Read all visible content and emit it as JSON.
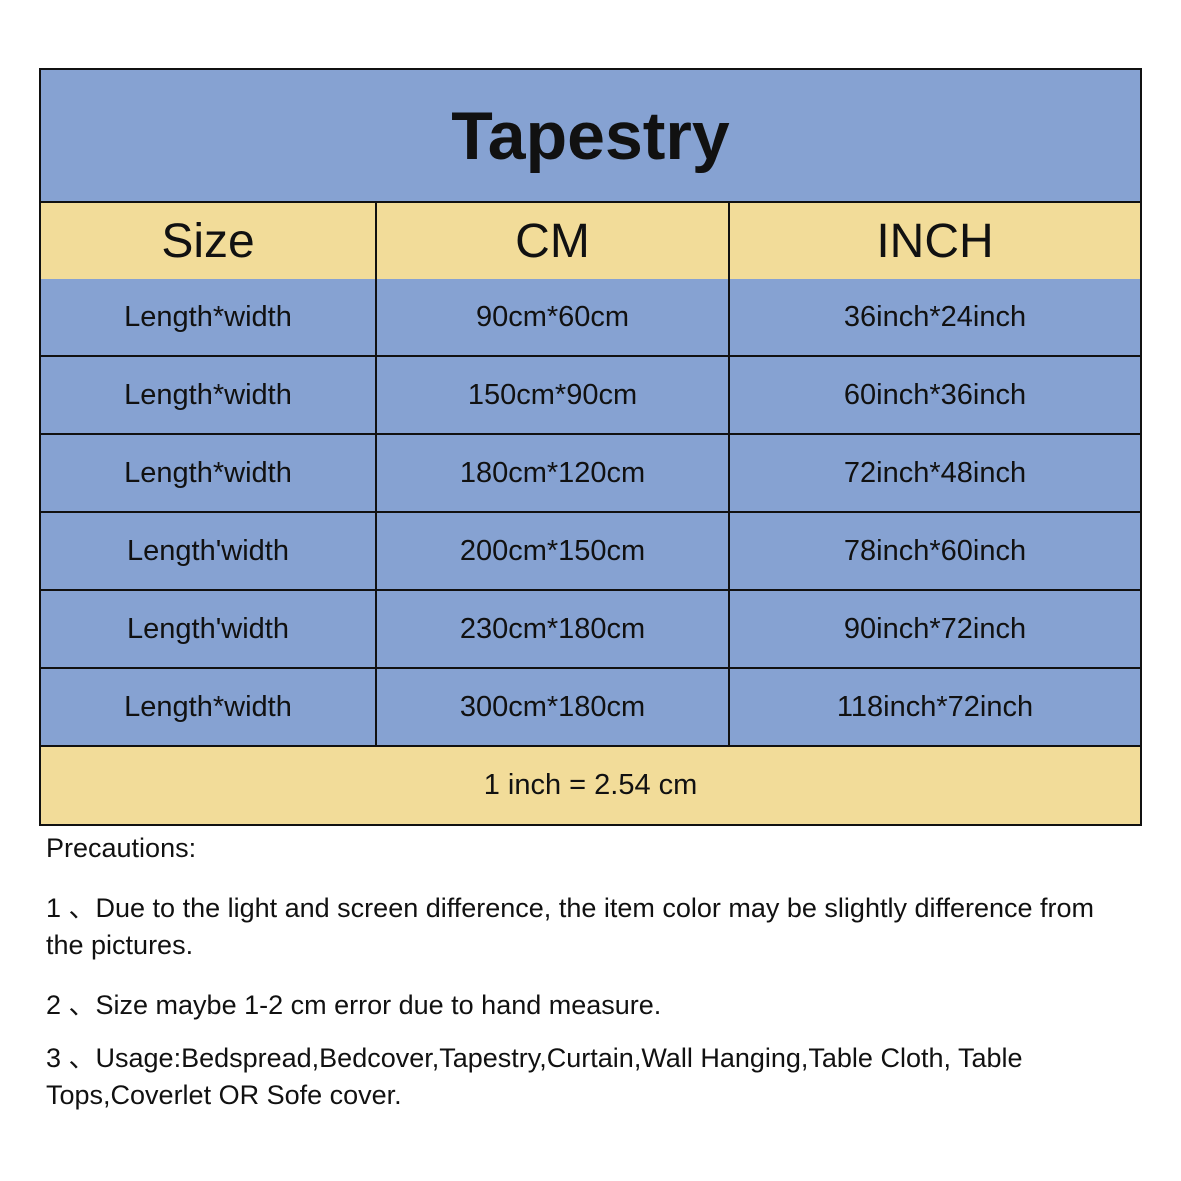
{
  "title": "Tapestry",
  "headers": [
    "Size",
    "CM",
    "INCH"
  ],
  "rows": [
    {
      "size": "Length*width",
      "cm": "90cm*60cm",
      "inch": "36inch*24inch"
    },
    {
      "size": "Length*width",
      "cm": "150cm*90cm",
      "inch": "60inch*36inch"
    },
    {
      "size": "Length*width",
      "cm": "180cm*120cm",
      "inch": "72inch*48inch"
    },
    {
      "size": "Length'width",
      "cm": "200cm*150cm",
      "inch": "78inch*60inch"
    },
    {
      "size": "Length'width",
      "cm": "230cm*180cm",
      "inch": "90inch*72inch"
    },
    {
      "size": "Length*width",
      "cm": "300cm*180cm",
      "inch": "118inch*72inch"
    }
  ],
  "footer": "1 inch = 2.54 cm",
  "notes": {
    "heading": "Precautions:",
    "items": [
      "1 、Due to the light and screen difference, the item color may be slightly difference from  the  pictures.",
      "2 、Size maybe 1-2 cm error due to hand measure.",
      "3 、Usage:Bedspread,Bedcover,Tapestry,Curtain,Wall Hanging,Table Cloth, Table Tops,Coverlet  OR  Sofe  cover."
    ]
  },
  "colors": {
    "blue": "#86a2d2",
    "yellow": "#f2dc99",
    "border": "#111111"
  }
}
